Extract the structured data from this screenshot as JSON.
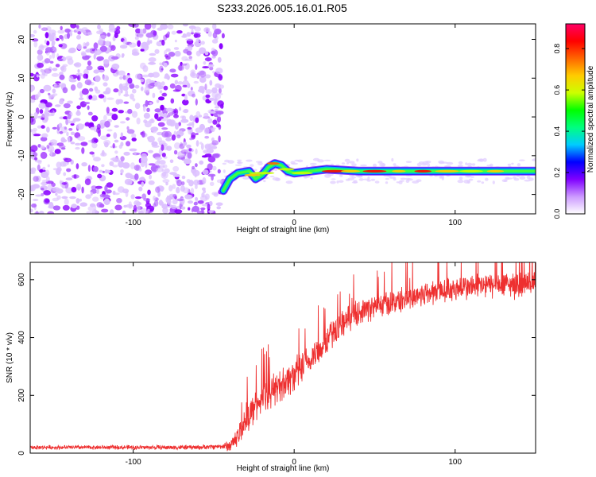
{
  "figure": {
    "title": "S233.2026.005.16.01.R05"
  },
  "chart_data": [
    {
      "type": "heatmap",
      "title": "",
      "xlabel": "Height of straight line (km)",
      "ylabel": "Frequency (Hz)",
      "xlim": [
        -164,
        150
      ],
      "ylim": [
        -25,
        24
      ],
      "xticks": [
        -100,
        0,
        100
      ],
      "yticks": [
        -20,
        -10,
        0,
        10,
        20
      ],
      "colorbar": {
        "label": "Normalized spectral amplitude",
        "range": [
          0,
          0.92
        ],
        "ticks": [
          0,
          0.2,
          0.4,
          0.6,
          0.8
        ],
        "tick_labels": [
          "0.0",
          "0.2",
          "0.4",
          "0.6",
          "0.8"
        ],
        "colormap": [
          "#ffffff",
          "#cc99ff",
          "#8000ff",
          "#0000ff",
          "#00ccff",
          "#00ff80",
          "#00ff00",
          "#ccff00",
          "#ffcc00",
          "#ff6600",
          "#ff0000",
          "#ff0066"
        ]
      },
      "regions": [
        {
          "name": "scattered noise",
          "x": [
            -164,
            -44
          ],
          "y": [
            -25,
            24
          ],
          "amplitude": [
            0.02,
            0.15
          ]
        },
        {
          "name": "signal line",
          "x": [
            -44,
            150
          ],
          "y_center": -14,
          "y_width": 3,
          "amplitude": [
            0.15,
            0.85
          ]
        }
      ],
      "signal_track": [
        {
          "x": -44,
          "y": -19
        },
        {
          "x": -40,
          "y": -16
        },
        {
          "x": -35,
          "y": -14.5
        },
        {
          "x": -28,
          "y": -14
        },
        {
          "x": -24,
          "y": -16
        },
        {
          "x": -20,
          "y": -15
        },
        {
          "x": -16,
          "y": -13
        },
        {
          "x": -12,
          "y": -12
        },
        {
          "x": -8,
          "y": -12.5
        },
        {
          "x": -4,
          "y": -14
        },
        {
          "x": 0,
          "y": -14.5
        },
        {
          "x": 10,
          "y": -14
        },
        {
          "x": 20,
          "y": -13.5
        },
        {
          "x": 40,
          "y": -14
        },
        {
          "x": 80,
          "y": -14
        },
        {
          "x": 120,
          "y": -14
        },
        {
          "x": 150,
          "y": -14
        }
      ]
    },
    {
      "type": "line",
      "title": "",
      "xlabel": "Height of straight line (km)",
      "ylabel": "SNR (10 * v/v)",
      "xlim": [
        -164,
        150
      ],
      "ylim": [
        0,
        660
      ],
      "xticks": [
        -100,
        0,
        100
      ],
      "yticks": [
        0,
        200,
        400,
        600
      ],
      "series": [
        {
          "name": "SNR",
          "color": "#ee3030",
          "trend": [
            {
              "x": -164,
              "y": 20
            },
            {
              "x": -60,
              "y": 20
            },
            {
              "x": -40,
              "y": 25
            },
            {
              "x": -35,
              "y": 60
            },
            {
              "x": -30,
              "y": 120
            },
            {
              "x": -20,
              "y": 190
            },
            {
              "x": -10,
              "y": 230
            },
            {
              "x": 0,
              "y": 270
            },
            {
              "x": 10,
              "y": 320
            },
            {
              "x": 20,
              "y": 390
            },
            {
              "x": 30,
              "y": 450
            },
            {
              "x": 40,
              "y": 490
            },
            {
              "x": 60,
              "y": 520
            },
            {
              "x": 80,
              "y": 550
            },
            {
              "x": 100,
              "y": 570
            },
            {
              "x": 120,
              "y": 580
            },
            {
              "x": 150,
              "y": 585
            }
          ],
          "noise_amplitude": [
            {
              "x": -164,
              "y": 8
            },
            {
              "x": -45,
              "y": 10
            },
            {
              "x": -30,
              "y": 60
            },
            {
              "x": 0,
              "y": 70
            },
            {
              "x": 40,
              "y": 50
            },
            {
              "x": 150,
              "y": 55
            }
          ]
        }
      ]
    }
  ]
}
